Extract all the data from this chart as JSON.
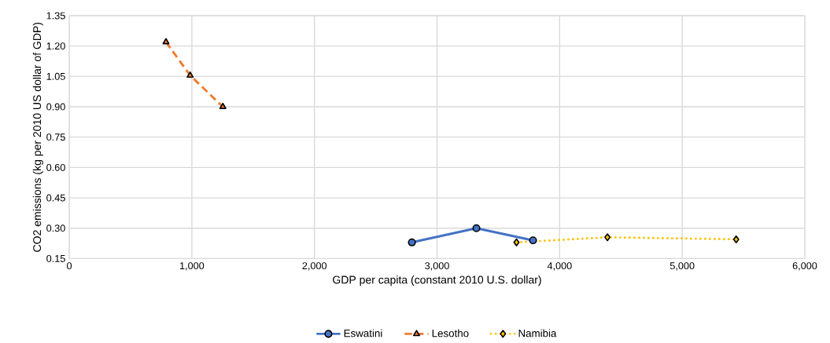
{
  "chart_data": {
    "type": "line",
    "xlabel": "GDP per capita (constant 2010 U.S. dollar)",
    "ylabel": "CO2 emissions (kg per 2010 US dollar of GDP)",
    "series": [
      {
        "name": "Eswatini",
        "color": "#4472c4",
        "marker": "circle",
        "line_style": "solid",
        "x": [
          2795,
          3321,
          3783
        ],
        "values": [
          0.23,
          0.3,
          0.24
        ]
      },
      {
        "name": "Lesotho",
        "color": "#ed7d31",
        "marker": "triangle",
        "line_style": "dashed",
        "x": [
          789,
          986,
          1253
        ],
        "values": [
          1.22,
          1.055,
          0.9
        ]
      },
      {
        "name": "Namibia",
        "color": "#ffc000",
        "marker": "diamond",
        "line_style": "dotted",
        "x": [
          3648,
          4390,
          5440
        ],
        "values": [
          0.23,
          0.255,
          0.245
        ]
      }
    ],
    "xlim": [
      0,
      6000
    ],
    "ylim": [
      0.15,
      1.35
    ],
    "xticks": [
      0,
      {
        "value": 1000,
        "label": "1,000"
      },
      {
        "value": 2000,
        "label": "2,000"
      },
      {
        "value": 3000,
        "label": "3,000"
      },
      {
        "value": 4000,
        "label": "4,000"
      },
      {
        "value": 5000,
        "label": "5,000"
      },
      {
        "value": 6000,
        "label": "6,000"
      }
    ],
    "yticks": [
      0.15,
      {
        "value": 0.3,
        "label": "0.30"
      },
      0.45,
      {
        "value": 0.6,
        "label": "0.60"
      },
      0.75,
      {
        "value": 0.9,
        "label": "0.90"
      },
      1.05,
      {
        "value": 1.2,
        "label": "1.20"
      },
      1.35
    ],
    "grid": true,
    "legend": "bottom"
  }
}
